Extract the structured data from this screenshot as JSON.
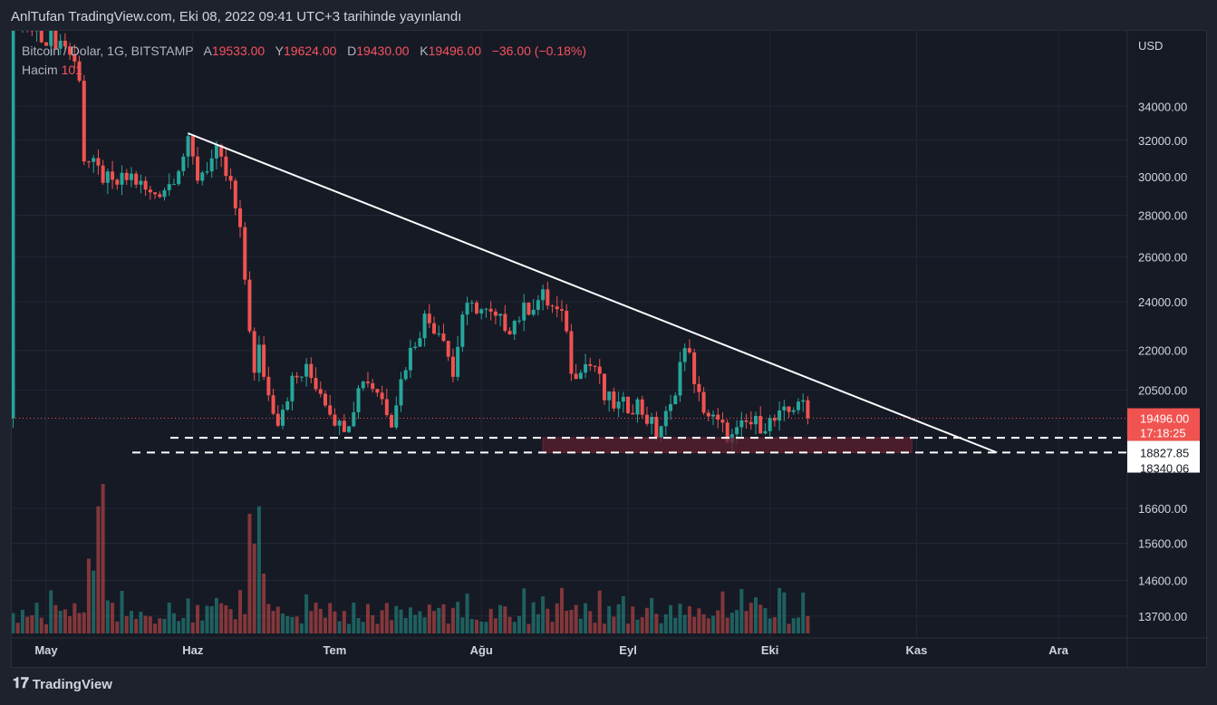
{
  "header": {
    "title": "AnlTufan TradingView.com, Eki 08, 2022 09:41 UTC+3 tarihinde yayınlandı"
  },
  "legend": {
    "symbol": "Bitcoin / Dolar, 1G, BITSTAMP",
    "o_label": "A",
    "o": "19533.00",
    "h_label": "Y",
    "h": "19624.00",
    "l_label": "D",
    "l": "19430.00",
    "c_label": "K",
    "c": "19496.00",
    "change": "−36.00 (−0.18%)",
    "volume_label": "Hacim",
    "volume": "101"
  },
  "footer": {
    "brand": "TradingView"
  },
  "colors": {
    "up": "#26a69a",
    "down": "#ef5350",
    "trendline": "#ffffff",
    "zone": "#5a1e2e"
  },
  "chart_data": {
    "type": "candlestick",
    "currency": "USD",
    "y_ticks": [
      34000,
      32000,
      30000,
      28000,
      26000,
      24000,
      22000,
      20500,
      16600,
      15600,
      14600,
      13700
    ],
    "y_tick_labels": [
      "34000.00",
      "32000.00",
      "30000.00",
      "28000.00",
      "26000.00",
      "24000.00",
      "22000.00",
      "20500.00",
      "16600.00",
      "15600.00",
      "14600.00",
      "13700.00"
    ],
    "x_labels": [
      {
        "label": "May",
        "day": 0
      },
      {
        "label": "Haz",
        "day": 31
      },
      {
        "label": "Tem",
        "day": 61
      },
      {
        "label": "Ağu",
        "day": 92
      },
      {
        "label": "Eyl",
        "day": 123
      },
      {
        "label": "Eki",
        "day": 153
      },
      {
        "label": "Kas",
        "day": 184
      },
      {
        "label": "Ara",
        "day": 214
      }
    ],
    "close_keypoints": [
      [
        -7,
        39500
      ],
      [
        4,
        38000
      ],
      [
        7,
        36000
      ],
      [
        8,
        31000
      ],
      [
        10,
        30500
      ],
      [
        14,
        29500
      ],
      [
        18,
        30000
      ],
      [
        22,
        29000
      ],
      [
        26,
        29600
      ],
      [
        30,
        31700
      ],
      [
        32,
        30000
      ],
      [
        36,
        31200
      ],
      [
        39,
        29500
      ],
      [
        41,
        27000
      ],
      [
        43,
        23000
      ],
      [
        44,
        21000
      ],
      [
        45,
        22000
      ],
      [
        47,
        20300
      ],
      [
        49,
        19500
      ],
      [
        52,
        20800
      ],
      [
        55,
        21200
      ],
      [
        58,
        20500
      ],
      [
        62,
        19200
      ],
      [
        64,
        19500
      ],
      [
        67,
        21000
      ],
      [
        70,
        20500
      ],
      [
        73,
        19500
      ],
      [
        76,
        21500
      ],
      [
        80,
        23300
      ],
      [
        84,
        22700
      ],
      [
        86,
        21000
      ],
      [
        88,
        23500
      ],
      [
        91,
        23800
      ],
      [
        95,
        23200
      ],
      [
        98,
        23000
      ],
      [
        102,
        23800
      ],
      [
        105,
        24200
      ],
      [
        108,
        23500
      ],
      [
        110,
        23000
      ],
      [
        111,
        21000
      ],
      [
        113,
        21500
      ],
      [
        116,
        21400
      ],
      [
        118,
        20200
      ],
      [
        121,
        19900
      ],
      [
        125,
        20000
      ],
      [
        129,
        19000
      ],
      [
        132,
        19800
      ],
      [
        134,
        21500
      ],
      [
        136,
        22200
      ],
      [
        137,
        20500
      ],
      [
        140,
        19600
      ],
      [
        143,
        19100
      ],
      [
        145,
        18800
      ],
      [
        148,
        19300
      ],
      [
        151,
        19300
      ],
      [
        154,
        19400
      ],
      [
        157,
        19700
      ],
      [
        159,
        20200
      ],
      [
        161,
        19496
      ]
    ],
    "last_price": {
      "value": 19496.0,
      "label": "19496.00",
      "countdown": "17:18:25"
    },
    "horizontal_levels": [
      {
        "value": 18827.85,
        "label": "18827.85"
      },
      {
        "value": 18340.06,
        "label": "18340.06"
      }
    ],
    "trendline": {
      "from": [
        30,
        32400
      ],
      "to": [
        201,
        18340
      ]
    },
    "zone": {
      "from_day": 105,
      "to_day": 183,
      "top": 18827.85,
      "bottom": 18340.06
    },
    "volume_spikes": [
      [
        11,
        0.85
      ],
      [
        12,
        1.0
      ],
      [
        9,
        0.5
      ],
      [
        10,
        0.42
      ],
      [
        43,
        0.8
      ],
      [
        44,
        0.6
      ],
      [
        45,
        0.85
      ],
      [
        46,
        0.4
      ]
    ]
  }
}
